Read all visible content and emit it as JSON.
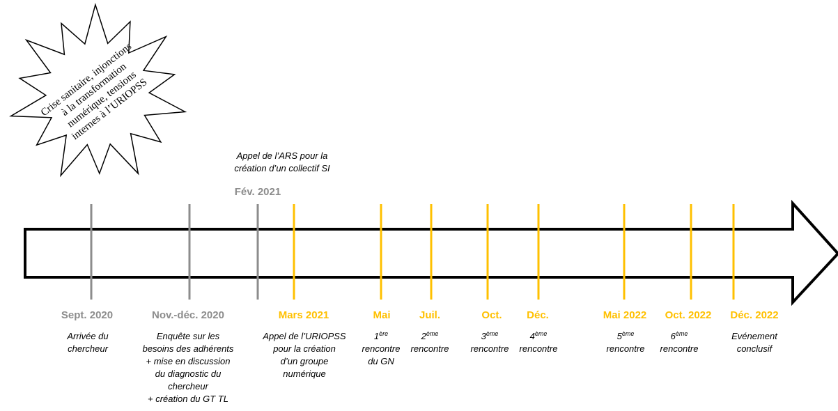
{
  "burst": {
    "lines": [
      "Crise sanitaire, injonctions",
      "à la transformation",
      "numérique, tensions",
      "internes à l’URIOPSS"
    ]
  },
  "events": [
    {
      "date": "Sept. 2020",
      "color": "#8c8c8c",
      "position": "below",
      "description": [
        "Arrivée du",
        "chercheur"
      ]
    },
    {
      "date": "Nov.-déc. 2020",
      "color": "#8c8c8c",
      "position": "below",
      "description": [
        "Enquête sur les",
        "besoins des adhérents",
        "+ mise en discussion",
        "du diagnostic du",
        "chercheur",
        "+ création du GT TL"
      ]
    },
    {
      "date": "Fév. 2021",
      "color": "#8c8c8c",
      "position": "above",
      "description": [
        "Appel de l’ARS pour la",
        "création d’un collectif SI"
      ]
    },
    {
      "date": "Mars 2021",
      "color": "#ffc000",
      "position": "below",
      "description": [
        "Appel de l’URIOPSS",
        "pour la création",
        "d’un groupe",
        "numérique"
      ]
    },
    {
      "date": "Mai",
      "color": "#ffc000",
      "position": "below",
      "description": [
        {
          "base": "1",
          "sup": "ère"
        },
        "rencontre",
        "du GN"
      ]
    },
    {
      "date": "Juil.",
      "color": "#ffc000",
      "position": "below",
      "description": [
        {
          "base": "2",
          "sup": "ème"
        },
        "rencontre"
      ]
    },
    {
      "date": "Oct.",
      "color": "#ffc000",
      "position": "below",
      "description": [
        {
          "base": "3",
          "sup": "ème"
        },
        "rencontre"
      ]
    },
    {
      "date": "Déc.",
      "color": "#ffc000",
      "position": "below",
      "description": [
        {
          "base": "4",
          "sup": "ème"
        },
        "rencontre"
      ]
    },
    {
      "date": "Mai 2022",
      "color": "#ffc000",
      "position": "below",
      "description": [
        {
          "base": "5",
          "sup": "ème"
        },
        "rencontre"
      ]
    },
    {
      "date": "Oct. 2022",
      "color": "#ffc000",
      "position": "below",
      "description": [
        {
          "base": "6",
          "sup": "ème"
        },
        "rencontre"
      ]
    },
    {
      "date": "Déc. 2022",
      "color": "#ffc000",
      "position": "below",
      "description": [
        "Evénement",
        "conclusif"
      ]
    }
  ]
}
